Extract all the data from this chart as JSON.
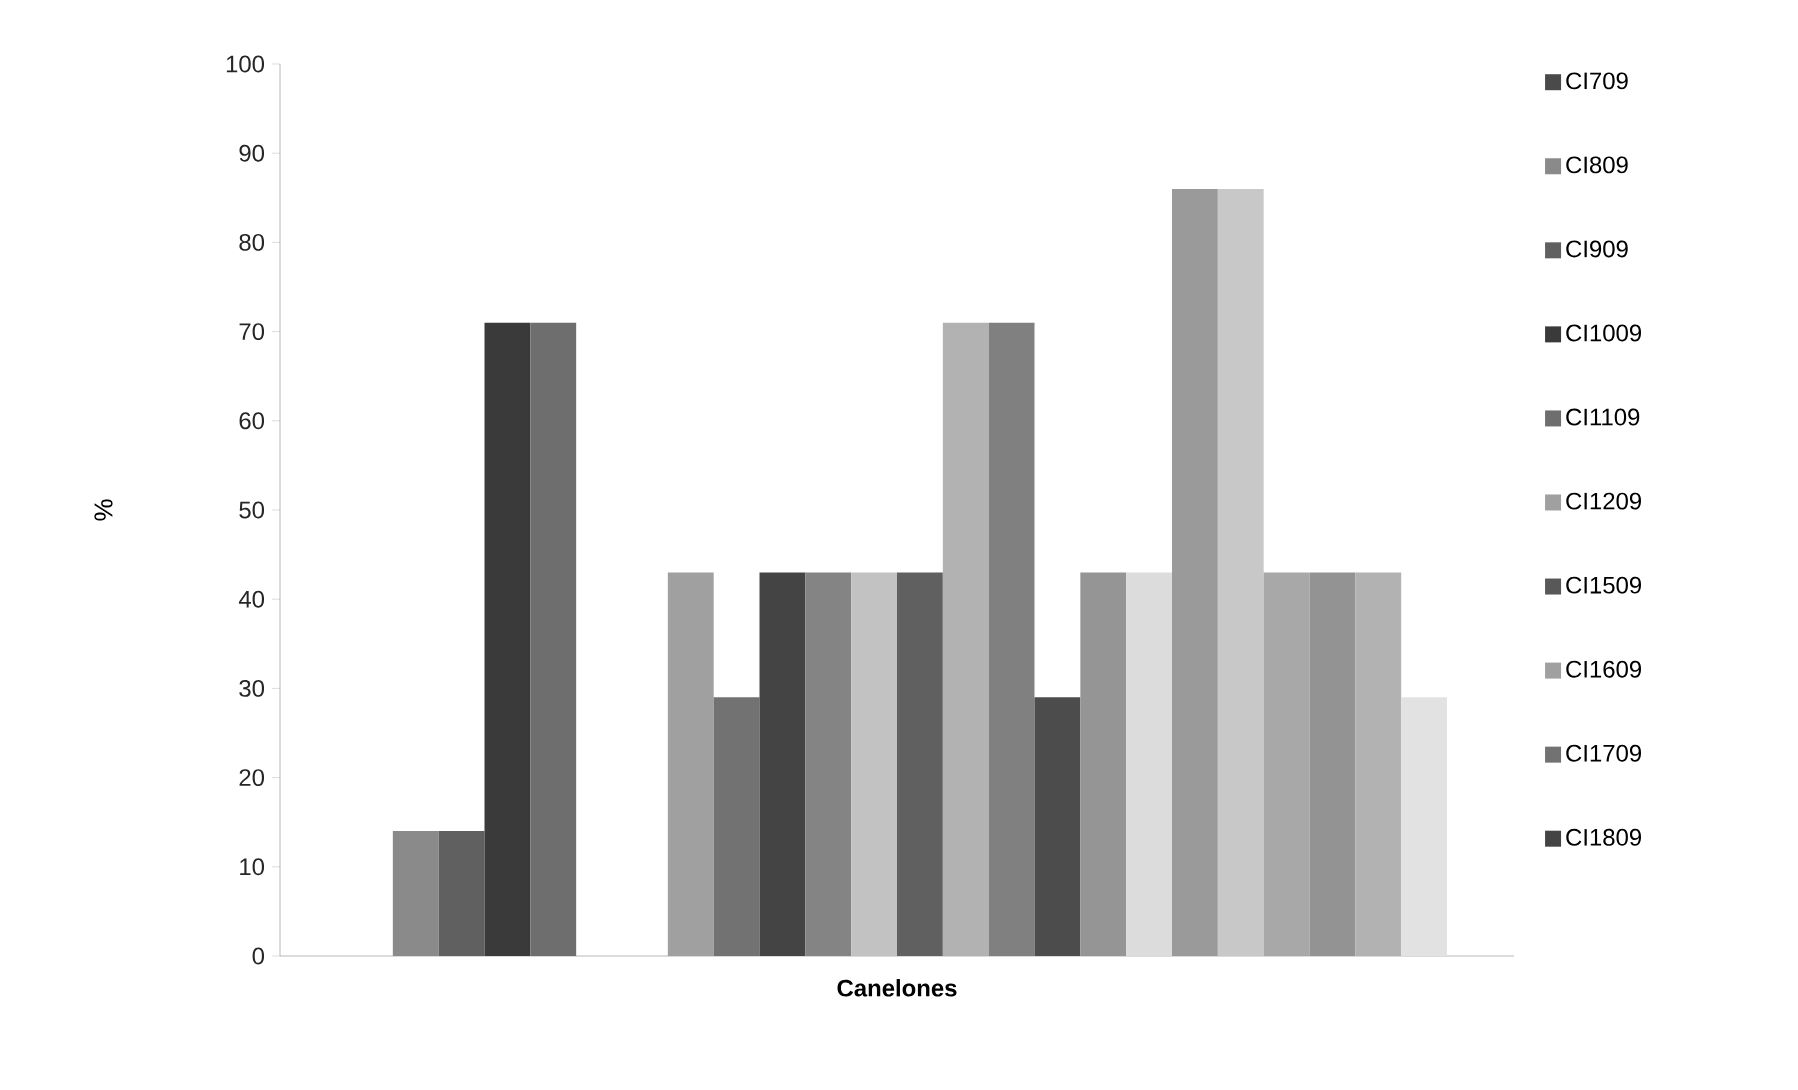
{
  "chart_data": {
    "type": "bar",
    "categories": [
      "Canelones"
    ],
    "ylabel": "%",
    "ylim": [
      0,
      100
    ],
    "yticks": [
      0,
      10,
      20,
      30,
      40,
      50,
      60,
      70,
      80,
      90,
      100
    ],
    "legend": "right",
    "series": [
      {
        "name": "CI709",
        "color": "#4a4a4a",
        "values": [
          null
        ]
      },
      {
        "name": "CI809",
        "color": "#8a8a8a",
        "values": [
          14
        ]
      },
      {
        "name": "CI909",
        "color": "#606060",
        "values": [
          14
        ]
      },
      {
        "name": "CI1009",
        "color": "#3a3a3a",
        "values": [
          71
        ]
      },
      {
        "name": "CI1109",
        "color": "#6e6e6e",
        "values": [
          71
        ]
      },
      {
        "name": "CI1209",
        "color": "#a0a0a0",
        "values": [
          null
        ]
      },
      {
        "name": "CI1509",
        "color": "#585858",
        "values": [
          null
        ]
      },
      {
        "name": "CI1609",
        "color": "#a0a0a0",
        "values": [
          43
        ]
      },
      {
        "name": "CI1709",
        "color": "#727272",
        "values": [
          29
        ]
      },
      {
        "name": "CI1809",
        "color": "#444444",
        "values": [
          43
        ]
      },
      {
        "color": "#848484",
        "values": [
          43
        ]
      },
      {
        "color": "#c2c2c2",
        "values": [
          43
        ]
      },
      {
        "color": "#606060",
        "values": [
          43
        ]
      },
      {
        "color": "#b2b2b2",
        "values": [
          71
        ]
      },
      {
        "color": "#808080",
        "values": [
          71
        ]
      },
      {
        "color": "#4c4c4c",
        "values": [
          29
        ]
      },
      {
        "color": "#959595",
        "values": [
          43
        ]
      },
      {
        "color": "#dcdcdc",
        "values": [
          43
        ]
      },
      {
        "color": "#9a9a9a",
        "values": [
          86
        ]
      },
      {
        "color": "#c8c8c8",
        "values": [
          86
        ]
      },
      {
        "color": "#a8a8a8",
        "values": [
          43
        ]
      },
      {
        "color": "#939393",
        "values": [
          43
        ]
      },
      {
        "color": "#b2b2b2",
        "values": [
          43
        ]
      },
      {
        "color": "#e2e2e2",
        "values": [
          29
        ]
      }
    ]
  }
}
